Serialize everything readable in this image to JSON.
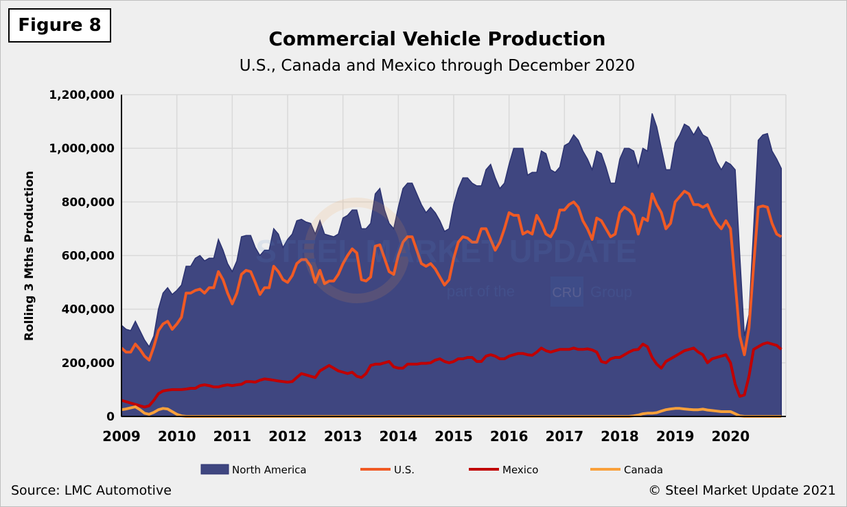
{
  "figure_label": "Figure 8",
  "source": "Source: LMC Automotive",
  "copyright": "© Steel Market Update 2021",
  "watermark": {
    "text": "STEEL MARKET UPDATE",
    "sub": "part of the",
    "brand": "CRU",
    "group": "Group"
  },
  "chart_data": {
    "type": "area",
    "title": "Commercial Vehicle Production",
    "subtitle": "U.S., Canada and Mexico through December 2020",
    "ylabel": "Rolling 3 Mths Production",
    "xlabel": "",
    "ylim": [
      0,
      1200000
    ],
    "yticks": [
      "0",
      "200,000",
      "400,000",
      "600,000",
      "800,000",
      "1,000,000",
      "1,200,000"
    ],
    "ytick_values": [
      0,
      200000,
      400000,
      600000,
      800000,
      1000000,
      1200000
    ],
    "xticks": [
      "2009",
      "2010",
      "2011",
      "2012",
      "2013",
      "2014",
      "2015",
      "2016",
      "2017",
      "2018",
      "2019",
      "2020"
    ],
    "x_start": "2009-01",
    "x_end": "2020-12",
    "frequency": "monthly",
    "units": "thousands",
    "grid": true,
    "legend_placement": "bottom",
    "series": [
      {
        "name": "North America",
        "kind": "area",
        "color": "#3f4680",
        "values": [
          340,
          325,
          320,
          355,
          320,
          285,
          260,
          300,
          400,
          460,
          480,
          455,
          470,
          490,
          560,
          560,
          590,
          600,
          580,
          590,
          590,
          660,
          620,
          570,
          540,
          580,
          670,
          675,
          675,
          630,
          600,
          620,
          620,
          700,
          680,
          630,
          660,
          680,
          730,
          735,
          725,
          720,
          680,
          730,
          680,
          675,
          670,
          680,
          740,
          750,
          770,
          770,
          700,
          700,
          720,
          830,
          850,
          770,
          720,
          700,
          780,
          850,
          870,
          870,
          830,
          790,
          760,
          780,
          760,
          730,
          690,
          700,
          790,
          850,
          890,
          890,
          870,
          860,
          860,
          920,
          940,
          890,
          850,
          870,
          940,
          1000,
          1000,
          1000,
          900,
          910,
          910,
          990,
          980,
          920,
          910,
          930,
          1010,
          1020,
          1050,
          1030,
          990,
          960,
          920,
          990,
          980,
          930,
          870,
          870,
          960,
          1000,
          1000,
          990,
          930,
          1000,
          990,
          1130,
          1080,
          1000,
          920,
          920,
          1020,
          1050,
          1090,
          1080,
          1050,
          1080,
          1050,
          1040,
          1000,
          950,
          920,
          950,
          940,
          920,
          600,
          300,
          380,
          700,
          1030,
          1050,
          1055,
          990,
          960,
          925
        ]
      },
      {
        "name": "U.S.",
        "kind": "line",
        "color": "#f05a24",
        "values": [
          255,
          240,
          240,
          270,
          250,
          225,
          210,
          260,
          320,
          345,
          355,
          325,
          345,
          370,
          460,
          460,
          470,
          475,
          460,
          480,
          480,
          540,
          510,
          460,
          420,
          460,
          530,
          545,
          540,
          500,
          455,
          480,
          480,
          560,
          540,
          510,
          500,
          525,
          570,
          585,
          585,
          560,
          500,
          545,
          495,
          505,
          505,
          530,
          570,
          600,
          625,
          610,
          510,
          505,
          520,
          635,
          640,
          590,
          540,
          530,
          600,
          650,
          670,
          670,
          620,
          570,
          560,
          570,
          550,
          520,
          490,
          510,
          590,
          650,
          670,
          665,
          650,
          650,
          700,
          700,
          660,
          620,
          650,
          700,
          760,
          750,
          750,
          680,
          690,
          680,
          750,
          720,
          680,
          670,
          700,
          770,
          770,
          790,
          800,
          780,
          730,
          700,
          660,
          740,
          730,
          700,
          670,
          680,
          760,
          780,
          770,
          750,
          680,
          740,
          730,
          830,
          790,
          760,
          700,
          720,
          800,
          820,
          840,
          830,
          790,
          790,
          780,
          790,
          750,
          720,
          700,
          730,
          700,
          500,
          300,
          230,
          330,
          560,
          780,
          785,
          780,
          720,
          680,
          670
        ]
      },
      {
        "name": "Mexico",
        "kind": "line",
        "color": "#c00000",
        "values": [
          60,
          55,
          50,
          45,
          40,
          35,
          40,
          60,
          85,
          95,
          98,
          100,
          100,
          100,
          102,
          105,
          105,
          115,
          118,
          115,
          110,
          110,
          115,
          118,
          115,
          118,
          120,
          130,
          130,
          128,
          135,
          140,
          138,
          135,
          132,
          130,
          128,
          130,
          145,
          160,
          155,
          150,
          145,
          170,
          180,
          190,
          180,
          170,
          165,
          160,
          165,
          150,
          145,
          160,
          190,
          195,
          195,
          200,
          205,
          185,
          180,
          180,
          195,
          195,
          195,
          198,
          198,
          200,
          210,
          215,
          205,
          200,
          205,
          215,
          215,
          220,
          220,
          205,
          205,
          225,
          230,
          225,
          215,
          215,
          225,
          230,
          235,
          235,
          230,
          228,
          240,
          255,
          245,
          240,
          245,
          250,
          250,
          250,
          255,
          250,
          250,
          252,
          248,
          240,
          205,
          200,
          215,
          220,
          220,
          230,
          240,
          248,
          250,
          270,
          260,
          220,
          195,
          180,
          205,
          215,
          225,
          235,
          245,
          250,
          255,
          240,
          230,
          200,
          215,
          220,
          225,
          230,
          200,
          120,
          75,
          80,
          150,
          250,
          260,
          270,
          275,
          270,
          265,
          250
        ]
      },
      {
        "name": "Canada",
        "kind": "line",
        "color": "#f9a03a",
        "values": [
          25,
          28,
          32,
          36,
          25,
          12,
          8,
          15,
          25,
          30,
          28,
          18,
          8,
          2,
          0,
          0,
          0,
          0,
          0,
          0,
          0,
          0,
          0,
          0,
          0,
          0,
          0,
          0,
          0,
          0,
          0,
          0,
          0,
          0,
          0,
          0,
          0,
          0,
          0,
          0,
          0,
          0,
          0,
          0,
          0,
          0,
          0,
          0,
          0,
          0,
          0,
          0,
          0,
          0,
          0,
          0,
          0,
          0,
          0,
          0,
          0,
          0,
          0,
          0,
          0,
          0,
          0,
          0,
          0,
          0,
          0,
          0,
          0,
          0,
          0,
          0,
          0,
          0,
          0,
          0,
          0,
          0,
          0,
          0,
          0,
          0,
          0,
          0,
          0,
          0,
          0,
          0,
          0,
          0,
          0,
          0,
          0,
          0,
          0,
          0,
          0,
          0,
          0,
          0,
          0,
          0,
          0,
          0,
          0,
          0,
          0,
          2,
          5,
          10,
          12,
          12,
          14,
          20,
          25,
          28,
          30,
          30,
          28,
          26,
          25,
          25,
          27,
          24,
          22,
          20,
          18,
          18,
          18,
          10,
          2,
          0,
          0,
          0,
          0,
          0,
          0,
          0,
          0,
          0
        ]
      }
    ]
  }
}
